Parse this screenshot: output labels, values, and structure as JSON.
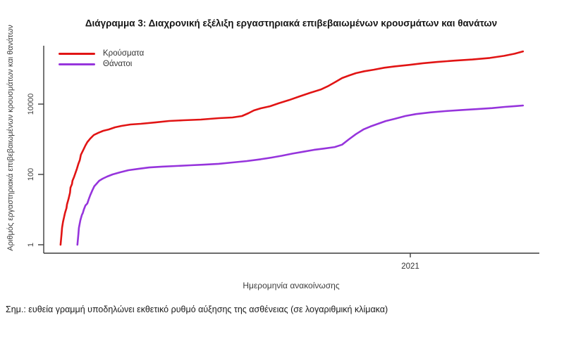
{
  "page": {
    "title": "Διάγραμμα 3: Διαχρονική εξέλιξη εργαστηριακά επιβεβαιωμένων κρουσμάτων και θανάτων",
    "note": "Σημ.: ευθεία γραμμή υποδηλώνει εκθετικό ρυθμό αύξησης της ασθένειας (σε λογαριθμική κλίμακα)"
  },
  "chart_data": {
    "type": "line",
    "title": "Διάγραμμα 3: Διαχρονική εξέλιξη εργαστηριακά επιβεβαιωμένων κρουσμάτων και θανάτων",
    "xlabel": "Ημερομηνία ανακοίνωσης",
    "ylabel": "Αριθμός εργαστηριακά επιβεβαιωμένων κρουσμάτων και θανάτων",
    "grid": false,
    "legend_position": "top-left",
    "y_axis": {
      "scale": "log",
      "ylim": [
        1,
        1000000
      ],
      "ticks": [
        {
          "value": 10000,
          "label": "10000"
        },
        {
          "value": 100,
          "label": "100"
        },
        {
          "value": 1,
          "label": "1"
        }
      ]
    },
    "x_axis": {
      "ticks": [
        {
          "label": "2021",
          "fraction": 0.74
        }
      ]
    },
    "series": [
      {
        "name": "Κρούσματα",
        "color": "#e11414",
        "points": [
          [
            0.034,
            1
          ],
          [
            0.036,
            2
          ],
          [
            0.037,
            3
          ],
          [
            0.039,
            4.5
          ],
          [
            0.041,
            6
          ],
          [
            0.043,
            8
          ],
          [
            0.046,
            11
          ],
          [
            0.047,
            14
          ],
          [
            0.05,
            20
          ],
          [
            0.053,
            30
          ],
          [
            0.054,
            42
          ],
          [
            0.057,
            53
          ],
          [
            0.058,
            66
          ],
          [
            0.061,
            83
          ],
          [
            0.064,
            110
          ],
          [
            0.067,
            145
          ],
          [
            0.07,
            200
          ],
          [
            0.073,
            260
          ],
          [
            0.075,
            360
          ],
          [
            0.08,
            500
          ],
          [
            0.084,
            660
          ],
          [
            0.088,
            830
          ],
          [
            0.094,
            1050
          ],
          [
            0.101,
            1320
          ],
          [
            0.11,
            1520
          ],
          [
            0.12,
            1740
          ],
          [
            0.131,
            1900
          ],
          [
            0.144,
            2190
          ],
          [
            0.157,
            2400
          ],
          [
            0.175,
            2630
          ],
          [
            0.196,
            2750
          ],
          [
            0.225,
            3000
          ],
          [
            0.253,
            3310
          ],
          [
            0.282,
            3470
          ],
          [
            0.317,
            3630
          ],
          [
            0.353,
            3980
          ],
          [
            0.381,
            4170
          ],
          [
            0.4,
            4570
          ],
          [
            0.413,
            5500
          ],
          [
            0.424,
            6600
          ],
          [
            0.438,
            7600
          ],
          [
            0.457,
            8700
          ],
          [
            0.474,
            10500
          ],
          [
            0.495,
            13000
          ],
          [
            0.516,
            16500
          ],
          [
            0.538,
            21000
          ],
          [
            0.559,
            26000
          ],
          [
            0.573,
            32000
          ],
          [
            0.588,
            42000
          ],
          [
            0.602,
            55000
          ],
          [
            0.616,
            65000
          ],
          [
            0.63,
            76000
          ],
          [
            0.647,
            86000
          ],
          [
            0.666,
            95000
          ],
          [
            0.687,
            108000
          ],
          [
            0.708,
            118000
          ],
          [
            0.737,
            130000
          ],
          [
            0.765,
            145000
          ],
          [
            0.794,
            158000
          ],
          [
            0.829,
            172000
          ],
          [
            0.865,
            185000
          ],
          [
            0.9,
            205000
          ],
          [
            0.929,
            235000
          ],
          [
            0.95,
            270000
          ],
          [
            0.967,
            315000
          ]
        ]
      },
      {
        "name": "Θάνατοι",
        "color": "#9634dc",
        "points": [
          [
            0.068,
            1
          ],
          [
            0.07,
            2
          ],
          [
            0.071,
            3
          ],
          [
            0.074,
            5
          ],
          [
            0.077,
            7
          ],
          [
            0.079,
            8
          ],
          [
            0.081,
            10
          ],
          [
            0.084,
            13
          ],
          [
            0.088,
            15
          ],
          [
            0.091,
            20
          ],
          [
            0.094,
            26
          ],
          [
            0.098,
            35
          ],
          [
            0.102,
            46
          ],
          [
            0.107,
            55
          ],
          [
            0.112,
            66
          ],
          [
            0.119,
            76
          ],
          [
            0.128,
            87
          ],
          [
            0.139,
            100
          ],
          [
            0.154,
            115
          ],
          [
            0.171,
            132
          ],
          [
            0.191,
            144
          ],
          [
            0.213,
            158
          ],
          [
            0.239,
            167
          ],
          [
            0.267,
            174
          ],
          [
            0.296,
            182
          ],
          [
            0.324,
            190
          ],
          [
            0.353,
            200
          ],
          [
            0.381,
            219
          ],
          [
            0.41,
            240
          ],
          [
            0.438,
            270
          ],
          [
            0.459,
            300
          ],
          [
            0.481,
            340
          ],
          [
            0.502,
            390
          ],
          [
            0.523,
            440
          ],
          [
            0.545,
            500
          ],
          [
            0.566,
            545
          ],
          [
            0.587,
            600
          ],
          [
            0.602,
            700
          ],
          [
            0.616,
            1000
          ],
          [
            0.63,
            1400
          ],
          [
            0.645,
            1900
          ],
          [
            0.659,
            2300
          ],
          [
            0.673,
            2700
          ],
          [
            0.69,
            3300
          ],
          [
            0.708,
            3800
          ],
          [
            0.73,
            4600
          ],
          [
            0.751,
            5200
          ],
          [
            0.78,
            5800
          ],
          [
            0.81,
            6300
          ],
          [
            0.843,
            6800
          ],
          [
            0.875,
            7200
          ],
          [
            0.905,
            7700
          ],
          [
            0.93,
            8300
          ],
          [
            0.953,
            8800
          ],
          [
            0.967,
            9100
          ]
        ]
      }
    ]
  }
}
